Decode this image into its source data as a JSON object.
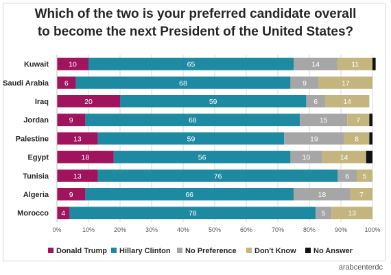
{
  "chart_data": {
    "type": "bar",
    "orientation": "horizontal",
    "stacked": true,
    "title_line1": "Which of the two is your preferred candidate overall",
    "title_line2": "to become the next President of the United States?",
    "categories": [
      "Kuwait",
      "Saudi Arabia",
      "Iraq",
      "Jordan",
      "Palestine",
      "Egypt",
      "Tunisia",
      "Algeria",
      "Morocco"
    ],
    "series": [
      {
        "name": "Donald Trump",
        "color": "#a0145e",
        "values": [
          10,
          6,
          20,
          9,
          13,
          18,
          13,
          9,
          4
        ]
      },
      {
        "name": "Hillary Clinton",
        "color": "#1e8aa2",
        "values": [
          65,
          68,
          59,
          68,
          59,
          56,
          76,
          66,
          78
        ]
      },
      {
        "name": "No Preference",
        "color": "#a6a6a6",
        "values": [
          14,
          9,
          6,
          15,
          19,
          10,
          6,
          18,
          5
        ]
      },
      {
        "name": "Don't Know",
        "color": "#c4b57e",
        "values": [
          11,
          17,
          14,
          7,
          8,
          14,
          5,
          7,
          13
        ]
      },
      {
        "name": "No Answer",
        "color": "#111111",
        "values": [
          1,
          0,
          0,
          1,
          1,
          2,
          0,
          0,
          0
        ]
      }
    ],
    "show_value_labels": [
      true,
      true,
      true,
      true,
      false
    ],
    "xlim": [
      0,
      100
    ],
    "xticks": [
      "0%",
      "10%",
      "20%",
      "30%",
      "40%",
      "50%",
      "60%",
      "70%",
      "80%",
      "90%",
      "100%"
    ],
    "grid": true,
    "legend_position": "bottom"
  },
  "credit": "arabcenterdc"
}
